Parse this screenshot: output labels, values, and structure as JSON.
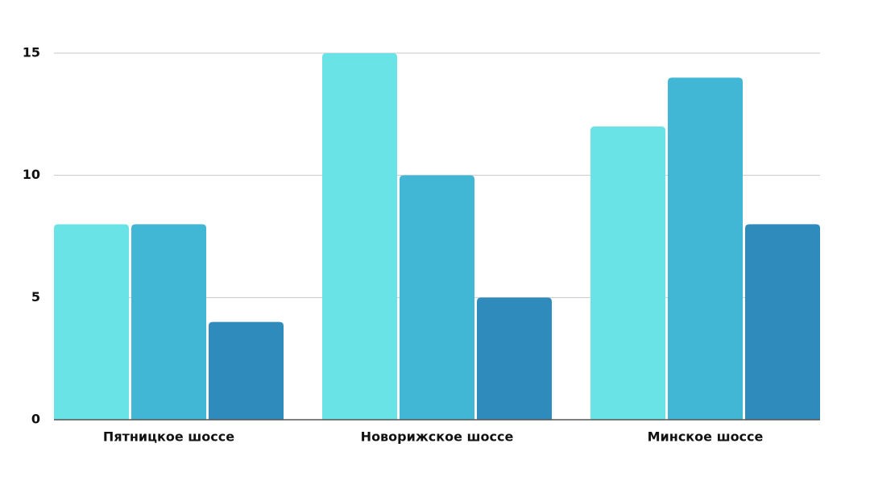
{
  "chart_data": {
    "type": "bar",
    "categories": [
      "Пятницкое шоссе",
      "Новорижское шоссе",
      "Минское шоссе"
    ],
    "series": [
      {
        "color": "#6ae3e6",
        "values": [
          8,
          15,
          12
        ]
      },
      {
        "color": "#42b6d5",
        "values": [
          8,
          10,
          14
        ]
      },
      {
        "color": "#2e8bbc",
        "values": [
          4,
          5,
          8
        ]
      }
    ],
    "ylim": [
      0,
      15
    ],
    "yticks": [
      0,
      5,
      10,
      15
    ],
    "grid": true
  }
}
